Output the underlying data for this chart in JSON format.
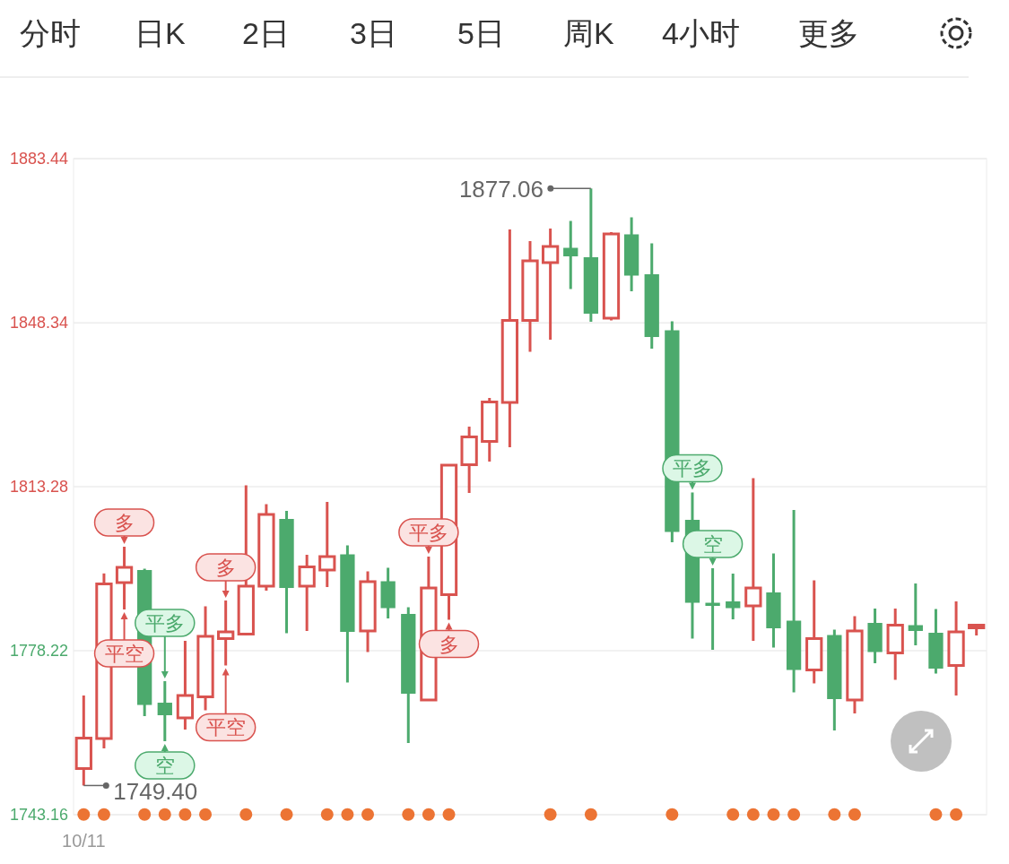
{
  "chart_data": {
    "type": "candlestick",
    "annotations": [
      "分时",
      "日K",
      "2日",
      "3日",
      "5日",
      "周K",
      "4小时",
      "更多",
      {
        "text": "多",
        "y": 1800.46
      },
      {
        "text": "平空",
        "y": 1787.04
      },
      {
        "text": "平多",
        "y": 1771.71
      },
      {
        "text": "空",
        "y": 1758.87
      },
      {
        "text": "多",
        "y": 1788.96
      },
      {
        "text": "平空",
        "y": 1775.07
      },
      {
        "text": "平多",
        "y": 1798.35
      },
      {
        "text": "多",
        "y": 1784.84
      },
      {
        "text": "平多",
        "y": 1812.06
      },
      {
        "text": "空",
        "y": 1795.86
      },
      "1877.06",
      "1749.40"
    ],
    "categories": [
      "10/11",
      null,
      null,
      null,
      null,
      null,
      null,
      null,
      null,
      null,
      null,
      null,
      null,
      null,
      null,
      null,
      null,
      null,
      null,
      null,
      null,
      null,
      null,
      null,
      null,
      null,
      null,
      null,
      null,
      null,
      null,
      null,
      null,
      null,
      null,
      null,
      null,
      null,
      null,
      null,
      null,
      null,
      null,
      null,
      null
    ],
    "ylim": [
      1743.16,
      1883.44
    ],
    "yticks": [
      {
        "value": 1883.44,
        "label": "1883.44"
      },
      {
        "value": 1848.34,
        "label": "1848.34"
      },
      {
        "value": 1813.28,
        "label": "1813.28"
      },
      {
        "value": 1778.22,
        "label": "1778.22"
      },
      {
        "value": 1743.16,
        "label": "1743.16"
      }
    ],
    "grid": "y",
    "series": [
      {
        "type": "scatter",
        "marker": "circle",
        "color": "#ec7434",
        "values": [
          1743.2,
          1743.2,
          null,
          1743.2,
          1743.2,
          1743.2,
          1743.2,
          null,
          1743.2,
          null,
          1743.2,
          null,
          1743.2,
          1743.2,
          1743.2,
          null,
          1743.2,
          1743.2,
          1743.2,
          null,
          null,
          null,
          null,
          1743.2,
          null,
          1743.2,
          null,
          null,
          null,
          1743.2,
          null,
          null,
          1743.2,
          1743.2,
          1743.2,
          1743.2,
          null,
          1743.2,
          1743.2,
          null,
          null,
          null,
          1743.2,
          1743.2,
          null
        ]
      },
      {
        "type": "candlestick",
        "ohlc": [
          [
            1753.03,
            1768.65,
            1749.4,
            1759.54
          ],
          [
            1759.45,
            1794.75,
            1757.34,
            1792.51
          ],
          [
            1792.79,
            1800.46,
            1787.04,
            1796.05
          ],
          [
            1795.48,
            1795.76,
            1764.24,
            1766.63
          ],
          [
            1767.11,
            1771.71,
            1758.87,
            1764.43
          ],
          [
            1763.86,
            1780.34,
            1761.37,
            1768.65
          ],
          [
            1768.36,
            1787.72,
            1765.49,
            1781.3
          ],
          [
            1780.82,
            1788.96,
            1775.07,
            1782.25
          ],
          [
            1781.78,
            1813.59,
            1781.49,
            1792.03
          ],
          [
            1792.03,
            1809.56,
            1791.07,
            1807.36
          ],
          [
            1806.4,
            1808.13,
            1781.97,
            1791.64
          ],
          [
            1792.03,
            1798.74,
            1782.45,
            1796.15
          ],
          [
            1795.48,
            1810.04,
            1791.84,
            1798.35
          ],
          [
            1798.83,
            1800.75,
            1771.43,
            1782.25
          ],
          [
            1782.45,
            1795.19,
            1777.94,
            1792.99
          ],
          [
            1793.08,
            1795.96,
            1785.13,
            1787.33
          ],
          [
            1786.09,
            1787.52,
            1758.49,
            1769.03
          ],
          [
            1767.69,
            1798.35,
            1767.69,
            1791.64
          ],
          [
            1790.21,
            1817.9,
            1784.84,
            1817.9
          ],
          [
            1817.99,
            1826.14,
            1811.96,
            1823.94
          ],
          [
            1822.98,
            1832.27,
            1818.67,
            1831.41
          ],
          [
            1831.31,
            1868.3,
            1821.73,
            1848.85
          ],
          [
            1848.85,
            1865.81,
            1842.14,
            1861.59
          ],
          [
            1861.21,
            1868.49,
            1844.73,
            1864.66
          ],
          [
            1864.37,
            1870.12,
            1855.56,
            1862.55
          ],
          [
            1862.36,
            1877.06,
            1848.56,
            1850.29
          ],
          [
            1849.33,
            1867.73,
            1848.85,
            1867.34
          ],
          [
            1867.25,
            1870.89,
            1855.08,
            1858.43
          ],
          [
            1858.72,
            1865.33,
            1842.81,
            1845.3
          ],
          [
            1846.74,
            1848.66,
            1801.42,
            1803.62
          ],
          [
            1806.21,
            1812.06,
            1780.82,
            1788.48
          ],
          [
            1788.48,
            1795.86,
            1778.42,
            1787.81
          ],
          [
            1788.77,
            1794.71,
            1784.94,
            1787.33
          ],
          [
            1787.81,
            1815.12,
            1780.34,
            1791.64
          ],
          [
            1790.69,
            1799.02,
            1778.9,
            1783.02
          ],
          [
            1784.65,
            1808.32,
            1769.32,
            1774.11
          ],
          [
            1774.11,
            1793.27,
            1771.24,
            1780.82
          ],
          [
            1781.58,
            1782.73,
            1761.17,
            1767.88
          ],
          [
            1767.69,
            1785.61,
            1764.81,
            1782.45
          ],
          [
            1784.17,
            1787.24,
            1775.55,
            1777.94
          ],
          [
            1777.75,
            1787.24,
            1772.0,
            1783.69
          ],
          [
            1783.69,
            1792.6,
            1779.38,
            1782.45
          ],
          [
            1782.06,
            1787.14,
            1773.34,
            1774.4
          ],
          [
            1775.07,
            1788.77,
            1768.65,
            1782.25
          ],
          [
            1783.21,
            1783.98,
            1781.49,
            1783.69
          ]
        ],
        "colors": [
          "#d9534f",
          "#d9534f",
          "#d9534f",
          "#4caa6d",
          "#4caa6d",
          "#d9534f",
          "#d9534f",
          "#d9534f",
          "#d9534f",
          "#d9534f",
          "#4caa6d",
          "#d9534f",
          "#d9534f",
          "#4caa6d",
          "#d9534f",
          "#4caa6d",
          "#4caa6d",
          "#d9534f",
          "#d9534f",
          "#d9534f",
          "#d9534f",
          "#d9534f",
          "#d9534f",
          "#d9534f",
          "#4caa6d",
          "#4caa6d",
          "#d9534f",
          "#4caa6d",
          "#4caa6d",
          "#4caa6d",
          "#4caa6d",
          "#4caa6d",
          "#4caa6d",
          "#d9534f",
          "#4caa6d",
          "#4caa6d",
          "#d9534f",
          "#4caa6d",
          "#d9534f",
          "#4caa6d",
          "#d9534f",
          "#4caa6d",
          "#4caa6d",
          "#d9534f",
          "#d9534f"
        ]
      }
    ]
  }
}
